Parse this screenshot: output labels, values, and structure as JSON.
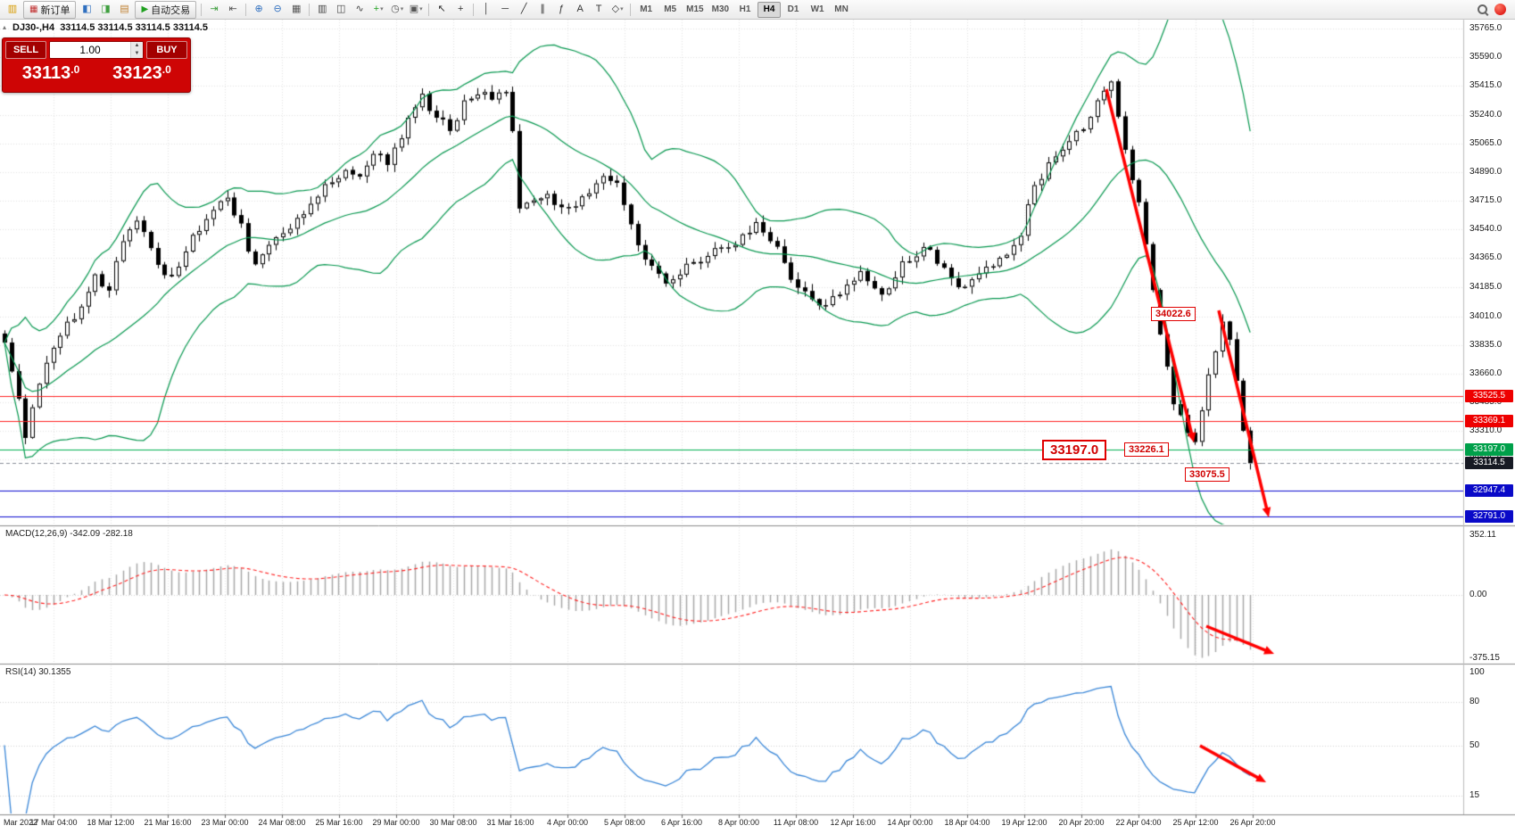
{
  "toolbar": {
    "items": [
      {
        "kind": "icon",
        "name": "app-chart-icon",
        "glyph": "▥",
        "color": "#d79b00"
      },
      {
        "kind": "button",
        "name": "new-order-button",
        "label": "新订单",
        "glyph": "▦",
        "glyph_color": "#c03030"
      },
      {
        "kind": "icon",
        "name": "market-watch-icon",
        "glyph": "◧",
        "color": "#2f6fbf"
      },
      {
        "kind": "icon",
        "name": "navigator-icon",
        "glyph": "◨",
        "color": "#3f9f3f"
      },
      {
        "kind": "icon",
        "name": "terminal-icon",
        "glyph": "▤",
        "color": "#bf7f2f"
      },
      {
        "kind": "button",
        "name": "auto-trading-button",
        "label": "自动交易",
        "glyph": "▶",
        "glyph_color": "#1fa01f"
      },
      {
        "kind": "sep"
      },
      {
        "kind": "icon",
        "name": "auto-scroll-icon",
        "glyph": "⇥",
        "color": "#3f9f3f"
      },
      {
        "kind": "icon",
        "name": "chart-shift-icon",
        "glyph": "⇤",
        "color": "#555555"
      },
      {
        "kind": "sep"
      },
      {
        "kind": "icon",
        "name": "zoom-in-icon",
        "glyph": "⊕",
        "color": "#2f6fbf"
      },
      {
        "kind": "icon",
        "name": "zoom-out-icon",
        "glyph": "⊖",
        "color": "#2f6fbf"
      },
      {
        "kind": "icon",
        "name": "tile-windows-icon",
        "glyph": "▦",
        "color": "#555555"
      },
      {
        "kind": "sep"
      },
      {
        "kind": "icon",
        "name": "bar-chart-mode-icon",
        "glyph": "▥",
        "color": "#444444"
      },
      {
        "kind": "icon",
        "name": "candlestick-mode-icon",
        "glyph": "◫",
        "color": "#444444"
      },
      {
        "kind": "icon",
        "name": "line-chart-mode-icon",
        "glyph": "∿",
        "color": "#444444"
      },
      {
        "kind": "icon",
        "name": "add-indicator-icon",
        "glyph": "+",
        "color": "#1fa01f",
        "caret": true
      },
      {
        "kind": "icon",
        "name": "period-icon",
        "glyph": "◷",
        "color": "#555555",
        "caret": true
      },
      {
        "kind": "icon",
        "name": "template-icon",
        "glyph": "▣",
        "color": "#555555",
        "caret": true
      },
      {
        "kind": "sep"
      },
      {
        "kind": "icon",
        "name": "cursor-icon",
        "glyph": "↖",
        "color": "#333333"
      },
      {
        "kind": "icon",
        "name": "crosshair-icon",
        "glyph": "+",
        "color": "#333333"
      },
      {
        "kind": "sep"
      },
      {
        "kind": "icon",
        "name": "vertical-line-icon",
        "glyph": "│",
        "color": "#333333"
      },
      {
        "kind": "icon",
        "name": "horizontal-line-icon",
        "glyph": "─",
        "color": "#333333"
      },
      {
        "kind": "icon",
        "name": "trendline-icon",
        "glyph": "╱",
        "color": "#333333"
      },
      {
        "kind": "icon",
        "name": "channel-icon",
        "glyph": "∥",
        "color": "#333333"
      },
      {
        "kind": "icon",
        "name": "fibonacci-icon",
        "glyph": "ƒ",
        "color": "#333333"
      },
      {
        "kind": "icon",
        "name": "text-icon",
        "glyph": "A",
        "color": "#333333"
      },
      {
        "kind": "icon",
        "name": "text-label-icon",
        "glyph": "T",
        "color": "#333333"
      },
      {
        "kind": "icon",
        "name": "shapes-icon",
        "glyph": "◇",
        "color": "#333333",
        "caret": true
      },
      {
        "kind": "sep"
      },
      {
        "kind": "tf",
        "name": "timeframe-m1",
        "label": "M1"
      },
      {
        "kind": "tf",
        "name": "timeframe-m5",
        "label": "M5"
      },
      {
        "kind": "tf",
        "name": "timeframe-m15",
        "label": "M15"
      },
      {
        "kind": "tf",
        "name": "timeframe-m30",
        "label": "M30"
      },
      {
        "kind": "tf",
        "name": "timeframe-h1",
        "label": "H1"
      },
      {
        "kind": "tf",
        "name": "timeframe-h4",
        "label": "H4",
        "active": true
      },
      {
        "kind": "tf",
        "name": "timeframe-d1",
        "label": "D1"
      },
      {
        "kind": "tf",
        "name": "timeframe-w1",
        "label": "W1"
      },
      {
        "kind": "tf",
        "name": "timeframe-mn",
        "label": "MN"
      },
      {
        "kind": "spacer"
      },
      {
        "kind": "search",
        "name": "search-icon"
      },
      {
        "kind": "badge",
        "name": "notification-badge"
      }
    ]
  },
  "quote_bar": {
    "toggle_icon": "▴",
    "symbol_info": "DJ30-,H4  33114.5 33114.5 33114.5 33114.5"
  },
  "trade_panel": {
    "sell_label": "SELL",
    "buy_label": "BUY",
    "volume": "1.00",
    "spin_up": "▲",
    "spin_down": "▼",
    "sell_price": "33113",
    "sell_price_frac": ".0",
    "buy_price": "33123",
    "buy_price_frac": ".0"
  },
  "chart_data": {
    "type": "candlestick",
    "symbol": "DJ30-",
    "timeframe": "H4",
    "bars": 180,
    "price_path": [
      [
        0,
        33850
      ],
      [
        2,
        33500
      ],
      [
        3,
        33280
      ],
      [
        5,
        33620
      ],
      [
        8,
        33900
      ],
      [
        11,
        34060
      ],
      [
        13,
        34250
      ],
      [
        15,
        34160
      ],
      [
        17,
        34480
      ],
      [
        19,
        34620
      ],
      [
        21,
        34400
      ],
      [
        24,
        34230
      ],
      [
        27,
        34480
      ],
      [
        30,
        34660
      ],
      [
        32,
        34750
      ],
      [
        34,
        34550
      ],
      [
        36,
        34310
      ],
      [
        38,
        34430
      ],
      [
        40,
        34520
      ],
      [
        43,
        34650
      ],
      [
        46,
        34800
      ],
      [
        49,
        34920
      ],
      [
        51,
        34850
      ],
      [
        53,
        35020
      ],
      [
        55,
        34950
      ],
      [
        57,
        35120
      ],
      [
        59,
        35280
      ],
      [
        60,
        35360
      ],
      [
        62,
        35220
      ],
      [
        64,
        35160
      ],
      [
        66,
        35300
      ],
      [
        68,
        35390
      ],
      [
        70,
        35340
      ],
      [
        72,
        35380
      ],
      [
        73,
        35150
      ],
      [
        74,
        34660
      ],
      [
        76,
        34710
      ],
      [
        78,
        34780
      ],
      [
        80,
        34650
      ],
      [
        83,
        34730
      ],
      [
        86,
        34860
      ],
      [
        88,
        34800
      ],
      [
        90,
        34560
      ],
      [
        92,
        34360
      ],
      [
        95,
        34230
      ],
      [
        97,
        34280
      ],
      [
        99,
        34330
      ],
      [
        102,
        34420
      ],
      [
        105,
        34470
      ],
      [
        108,
        34570
      ],
      [
        111,
        34420
      ],
      [
        114,
        34180
      ],
      [
        117,
        34060
      ],
      [
        120,
        34130
      ],
      [
        123,
        34270
      ],
      [
        126,
        34130
      ],
      [
        129,
        34320
      ],
      [
        132,
        34430
      ],
      [
        135,
        34310
      ],
      [
        137,
        34170
      ],
      [
        140,
        34270
      ],
      [
        143,
        34340
      ],
      [
        146,
        34520
      ],
      [
        148,
        34820
      ],
      [
        150,
        34930
      ],
      [
        152,
        35030
      ],
      [
        155,
        35160
      ],
      [
        157,
        35320
      ],
      [
        159,
        35430
      ],
      [
        161,
        35010
      ],
      [
        163,
        34690
      ],
      [
        165,
        34160
      ],
      [
        166,
        33910
      ],
      [
        168,
        33500
      ],
      [
        170,
        33310
      ],
      [
        171,
        33270
      ],
      [
        173,
        33640
      ],
      [
        175,
        33990
      ],
      [
        176,
        33890
      ],
      [
        177,
        33620
      ],
      [
        178,
        33310
      ],
      [
        179,
        33114.5
      ]
    ],
    "pinned": {
      "peak_high": 35430,
      "bounce_high": 34022.6,
      "first_leg_low": 33226.1,
      "final_low": 33075.5,
      "last_close": 33114.5
    },
    "y_ticks": [
      35765,
      35590,
      35415,
      35240,
      35065,
      34890,
      34715,
      34540,
      34365,
      34185,
      34010,
      33835,
      33660,
      33485,
      33310,
      33135
    ],
    "levels": [
      {
        "price": 33525.5,
        "line": "#ff2222",
        "bg": "#ee0000",
        "dash": false
      },
      {
        "price": 33369.1,
        "line": "#ff2222",
        "bg": "#ee0000",
        "dash": false
      },
      {
        "price": 33197.0,
        "line": "#00b050",
        "bg": "#00a04a",
        "dash": false
      },
      {
        "price": 33114.5,
        "line": "#8a8f9a",
        "bg": "#171a24",
        "dash": true
      },
      {
        "price": 32947.4,
        "line": "#0a0ad0",
        "bg": "#0a0ac8",
        "dash": false
      },
      {
        "price": 32791.0,
        "line": "#0a0ad0",
        "bg": "#0a0ac8",
        "dash": false
      }
    ],
    "annotations": [
      {
        "text": "34022.6"
      },
      {
        "text": "33197.0"
      },
      {
        "text": "33226.1"
      },
      {
        "text": "33075.5"
      }
    ],
    "arrows": [
      {
        "panel": "main",
        "from": [
          1240,
          100
        ],
        "to": [
          1338,
          496
        ]
      },
      {
        "panel": "main",
        "from": [
          1366,
          348
        ],
        "to": [
          1422,
          580
        ]
      },
      {
        "panel": "macd",
        "from": [
          1352,
          702
        ],
        "to": [
          1428,
          733
        ]
      },
      {
        "panel": "rsi",
        "from": [
          1345,
          836
        ],
        "to": [
          1419,
          877
        ]
      }
    ],
    "x_first_label": "Mar 2022",
    "x_ticks": [
      "17 Mar 04:00",
      "18 Mar 12:00",
      "21 Mar 16:00",
      "23 Mar 00:00",
      "24 Mar 08:00",
      "25 Mar 16:00",
      "29 Mar 00:00",
      "30 Mar 08:00",
      "31 Mar 16:00",
      "4 Apr 00:00",
      "5 Apr 08:00",
      "6 Apr 16:00",
      "8 Apr 00:00",
      "11 Apr 08:00",
      "12 Apr 16:00",
      "14 Apr 00:00",
      "18 Apr 04:00",
      "19 Apr 12:00",
      "20 Apr 20:00",
      "22 Apr 04:00",
      "25 Apr 12:00",
      "26 Apr 20:00"
    ],
    "bollinger": {
      "period": 20,
      "deviation": 2,
      "color": "#089850"
    },
    "macd": {
      "label": "MACD(12,26,9) -342.09 -282.18",
      "params": [
        12,
        26,
        9
      ],
      "value": -342.09,
      "signal_value": -282.18,
      "scale_labels": [
        "352.11",
        "0.00",
        "-375.15"
      ],
      "scale_values": [
        352.11,
        0,
        -375.15
      ],
      "histogram_color": "#a8a8a8",
      "signal_color": "#ff2020"
    },
    "rsi": {
      "label": "RSI(14) 30.1355",
      "period": 14,
      "value": 30.1355,
      "scale_labels": [
        "100",
        "80",
        "50",
        "15"
      ],
      "scale_values": [
        100,
        80,
        50,
        15
      ],
      "line_color": "#3a87d8"
    },
    "arrow_color": "#ff0000"
  }
}
